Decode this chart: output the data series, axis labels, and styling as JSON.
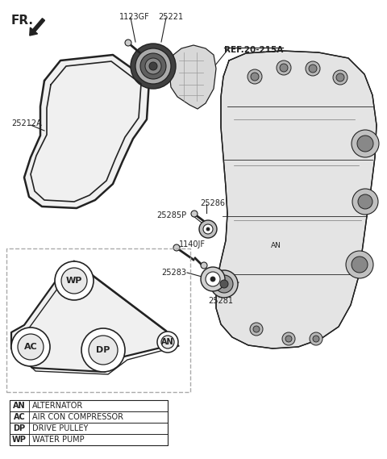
{
  "bg_color": "#ffffff",
  "dark": "#222222",
  "gray": "#888888",
  "lgray": "#cccccc",
  "legend_rows": [
    [
      "AN",
      "ALTERNATOR"
    ],
    [
      "AC",
      "AIR CON COMPRESSOR"
    ],
    [
      "DP",
      "DRIVE PULLEY"
    ],
    [
      "WP",
      "WATER PUMP"
    ]
  ]
}
